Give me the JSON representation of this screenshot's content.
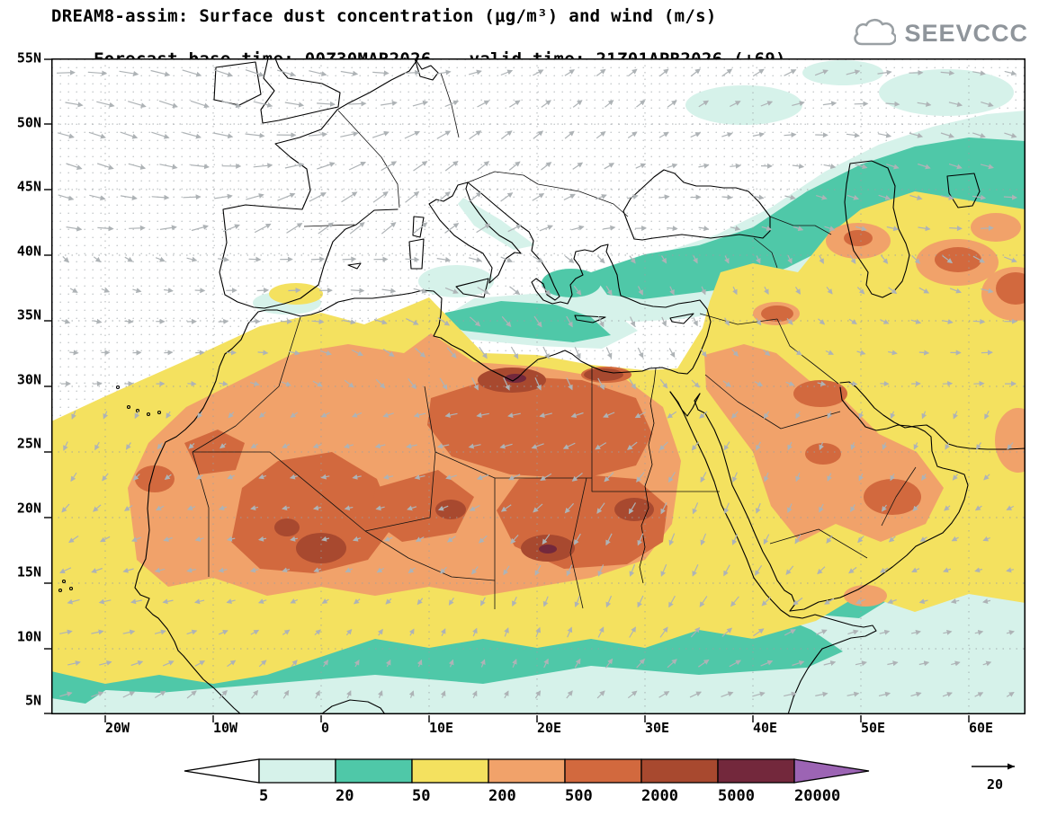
{
  "header": {
    "title": "DREAM8-assim: Surface dust concentration (μg/m³) and wind (m/s)",
    "forecast_base": "Forecast base time: 00Z30MAR2026",
    "valid_time": "valid time: 21Z01APR2026 (+69)",
    "logo_text": "SEEVCCC"
  },
  "axes": {
    "lat_labels": [
      "55N",
      "50N",
      "45N",
      "40N",
      "35N",
      "30N",
      "25N",
      "20N",
      "15N",
      "10N",
      "5N"
    ],
    "lon_labels": [
      "20W",
      "10W",
      "0",
      "10E",
      "20E",
      "30E",
      "40E",
      "50E",
      "60E"
    ]
  },
  "legend": {
    "tick_labels": [
      "5",
      "20",
      "50",
      "200",
      "500",
      "2000",
      "5000",
      "20000"
    ],
    "colors": [
      "#ffffff",
      "#d6f2ea",
      "#4fc8a8",
      "#f4e15f",
      "#f1a26a",
      "#d2693e",
      "#a8492f",
      "#73283c",
      "#9c64b4"
    ]
  },
  "wind": {
    "reference_label": "20",
    "arrow_color": "#aeb3b6"
  },
  "chart_data": {
    "type": "heatmap",
    "title": "DREAM8-assim: Surface dust concentration (μg/m³) and wind (m/s)",
    "units": "μg/m³",
    "scale_boundaries": [
      5,
      20,
      50,
      200,
      500,
      2000,
      5000,
      20000
    ],
    "above_max_color": "#9c64b4",
    "wind_reference_ms": 20,
    "lat_range": [
      "5N",
      "55N"
    ],
    "lon_range": [
      "20W",
      "60E"
    ],
    "legend_position": "bottom"
  }
}
